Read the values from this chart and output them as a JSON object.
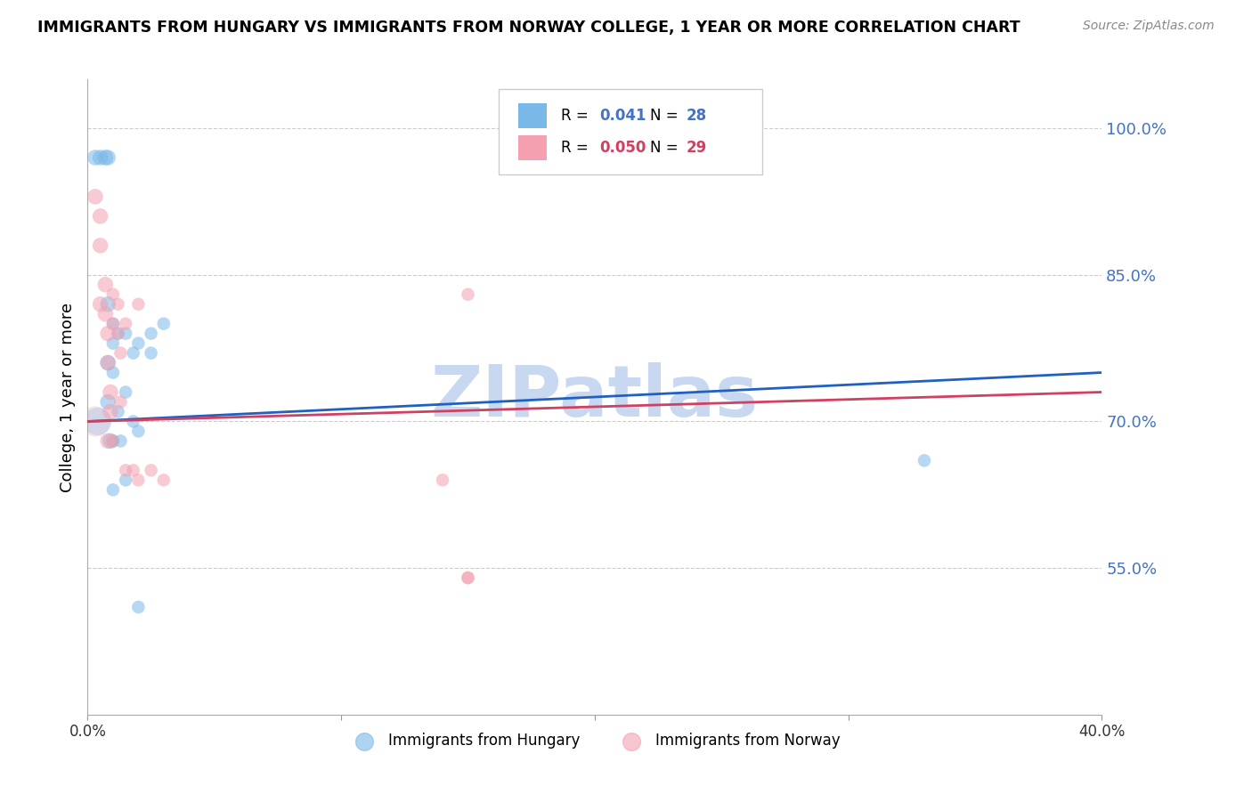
{
  "title": "IMMIGRANTS FROM HUNGARY VS IMMIGRANTS FROM NORWAY COLLEGE, 1 YEAR OR MORE CORRELATION CHART",
  "source": "Source: ZipAtlas.com",
  "ylabel": "College, 1 year or more",
  "xlim": [
    0.0,
    0.4
  ],
  "ylim": [
    0.4,
    1.05
  ],
  "yticks_right": [
    1.0,
    0.85,
    0.7,
    0.55
  ],
  "ytick_labels_right": [
    "100.0%",
    "85.0%",
    "70.0%",
    "55.0%"
  ],
  "legend_blue_r": "0.041",
  "legend_blue_n": "28",
  "legend_pink_r": "0.050",
  "legend_pink_n": "29",
  "legend_blue_label": "Immigrants from Hungary",
  "legend_pink_label": "Immigrants from Norway",
  "blue_color": "#7ab8e8",
  "pink_color": "#f4a0b0",
  "trend_blue_color": "#2060c0",
  "trend_pink_color": "#d04060",
  "watermark_text": "ZIPatlas",
  "watermark_color": "#c8d8f0",
  "blue_x": [
    0.003,
    0.005,
    0.007,
    0.008,
    0.008,
    0.008,
    0.008,
    0.009,
    0.01,
    0.01,
    0.01,
    0.01,
    0.01,
    0.012,
    0.012,
    0.013,
    0.015,
    0.015,
    0.015,
    0.018,
    0.018,
    0.02,
    0.02,
    0.025,
    0.025,
    0.03,
    0.02,
    0.33
  ],
  "blue_y": [
    0.97,
    0.97,
    0.97,
    0.97,
    0.82,
    0.76,
    0.72,
    0.68,
    0.8,
    0.78,
    0.75,
    0.68,
    0.63,
    0.79,
    0.71,
    0.68,
    0.79,
    0.73,
    0.64,
    0.77,
    0.7,
    0.78,
    0.69,
    0.79,
    0.77,
    0.8,
    0.51,
    0.66
  ],
  "pink_x": [
    0.003,
    0.005,
    0.005,
    0.005,
    0.007,
    0.007,
    0.008,
    0.008,
    0.009,
    0.009,
    0.01,
    0.01,
    0.01,
    0.012,
    0.012,
    0.013,
    0.013,
    0.015,
    0.015,
    0.018,
    0.02,
    0.02,
    0.025,
    0.03,
    0.008,
    0.15,
    0.14,
    0.15,
    0.15
  ],
  "pink_y": [
    0.93,
    0.91,
    0.88,
    0.82,
    0.84,
    0.81,
    0.79,
    0.76,
    0.73,
    0.71,
    0.83,
    0.8,
    0.68,
    0.82,
    0.79,
    0.77,
    0.72,
    0.8,
    0.65,
    0.65,
    0.82,
    0.64,
    0.65,
    0.64,
    0.68,
    0.83,
    0.64,
    0.54,
    0.54
  ],
  "trend_blue_x0": 0.0,
  "trend_blue_y0": 0.7,
  "trend_blue_x1": 0.4,
  "trend_blue_y1": 0.75,
  "trend_pink_x0": 0.0,
  "trend_pink_y0": 0.7,
  "trend_pink_x1": 0.4,
  "trend_pink_y1": 0.73
}
